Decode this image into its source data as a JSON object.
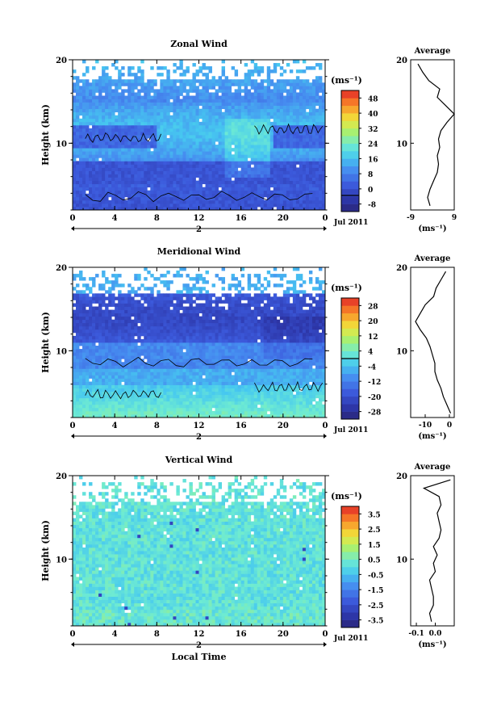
{
  "figure": {
    "date_label": "Jul 2011",
    "day_label": "2",
    "xlabel": "Local Time",
    "unit_label": "(ms⁻¹)",
    "average_title": "Average",
    "ylabel": "Height (km)"
  },
  "chart_data": [
    {
      "type": "heatmap",
      "id": "zonal",
      "title": "Zonal Wind",
      "xlabel": "",
      "ylabel": "Height (km)",
      "xlim": [
        0,
        24
      ],
      "ylim": [
        2,
        20
      ],
      "xticks": [
        "0",
        "4",
        "8",
        "12",
        "16",
        "20",
        "0"
      ],
      "yticks": [
        "10",
        "20"
      ],
      "colorbar": {
        "unit": "(ms⁻¹)",
        "ticks": [
          "-8",
          "0",
          "8",
          "16",
          "24",
          "32",
          "40",
          "48"
        ],
        "range": [
          -8,
          52
        ],
        "zero_contour": 0
      },
      "profile": {
        "title": "Average",
        "xlabel": "(ms⁻¹)",
        "xlim": [
          -9,
          9
        ],
        "xticks": [
          "-9",
          "9"
        ],
        "yticks": [
          "10",
          "20"
        ],
        "height": [
          2.5,
          3.5,
          4.5,
          5.5,
          6.5,
          7.5,
          8.5,
          9.5,
          10.5,
          11.5,
          12.5,
          13.5,
          14.5,
          15.5,
          16.5,
          17.5,
          18.5,
          19.5
        ],
        "value": [
          -1.0,
          -2.0,
          -1.0,
          0.5,
          2.0,
          2.5,
          2.0,
          3.0,
          2.5,
          3.5,
          6.0,
          9.0,
          5.5,
          2.0,
          3.0,
          -1.5,
          -4.0,
          -6.0
        ]
      }
    },
    {
      "type": "heatmap",
      "id": "meridional",
      "title": "Meridional Wind",
      "xlabel": "",
      "ylabel": "Height (km)",
      "xlim": [
        0,
        24
      ],
      "ylim": [
        2,
        20
      ],
      "xticks": [
        "0",
        "4",
        "8",
        "12",
        "16",
        "20",
        "0"
      ],
      "yticks": [
        "10",
        "20"
      ],
      "colorbar": {
        "unit": "(ms⁻¹)",
        "ticks": [
          "-28",
          "-20",
          "-12",
          "-4",
          "4",
          "12",
          "20",
          "28"
        ],
        "range": [
          -32,
          32
        ],
        "zero_contour": 0
      },
      "profile": {
        "title": "Average",
        "xlabel": "(ms⁻¹)",
        "xlim": [
          -16,
          2
        ],
        "xticks": [
          "-10",
          "0"
        ],
        "yticks": [
          "10",
          "20"
        ],
        "height": [
          2.5,
          3.5,
          4.5,
          5.5,
          6.5,
          7.5,
          8.5,
          9.5,
          10.5,
          11.5,
          12.5,
          13.5,
          14.5,
          15.5,
          16.5,
          17.5,
          18.5,
          19.5
        ],
        "value": [
          0.5,
          -1.0,
          -2.5,
          -3.5,
          -5.0,
          -6.0,
          -6.0,
          -7.0,
          -8.0,
          -9.5,
          -12.0,
          -14.0,
          -12.0,
          -10.0,
          -6.5,
          -5.5,
          -3.5,
          -1.5
        ]
      }
    },
    {
      "type": "heatmap",
      "id": "vertical",
      "title": "Vertical Wind",
      "xlabel": "Local Time",
      "ylabel": "Height (km)",
      "xlim": [
        0,
        24
      ],
      "ylim": [
        2,
        20
      ],
      "xticks": [
        "0",
        "4",
        "8",
        "12",
        "16",
        "20",
        "0"
      ],
      "yticks": [
        "10",
        "20"
      ],
      "colorbar": {
        "unit": "(ms⁻¹)",
        "ticks": [
          "-3.5",
          "-2.5",
          "-1.5",
          "-0.5",
          "0.5",
          "1.5",
          "2.5",
          "3.5"
        ],
        "range": [
          -4,
          4
        ],
        "zero_contour": null
      },
      "profile": {
        "title": "Average",
        "xlabel": "(ms⁻¹)",
        "xlim": [
          -0.13,
          0.1
        ],
        "xticks": [
          "-0.1",
          "0.0"
        ],
        "yticks": [
          "10",
          "20"
        ],
        "height": [
          2.5,
          3.5,
          4.5,
          5.5,
          6.5,
          7.5,
          8.5,
          9.5,
          10.5,
          11.5,
          12.5,
          13.5,
          14.5,
          15.5,
          16.5,
          17.5,
          18.5,
          19.5
        ],
        "value": [
          -0.02,
          -0.03,
          -0.01,
          -0.01,
          -0.02,
          -0.03,
          0.0,
          -0.01,
          0.01,
          -0.01,
          0.02,
          0.03,
          0.02,
          0.01,
          0.03,
          0.02,
          -0.06,
          0.08
        ]
      }
    }
  ]
}
